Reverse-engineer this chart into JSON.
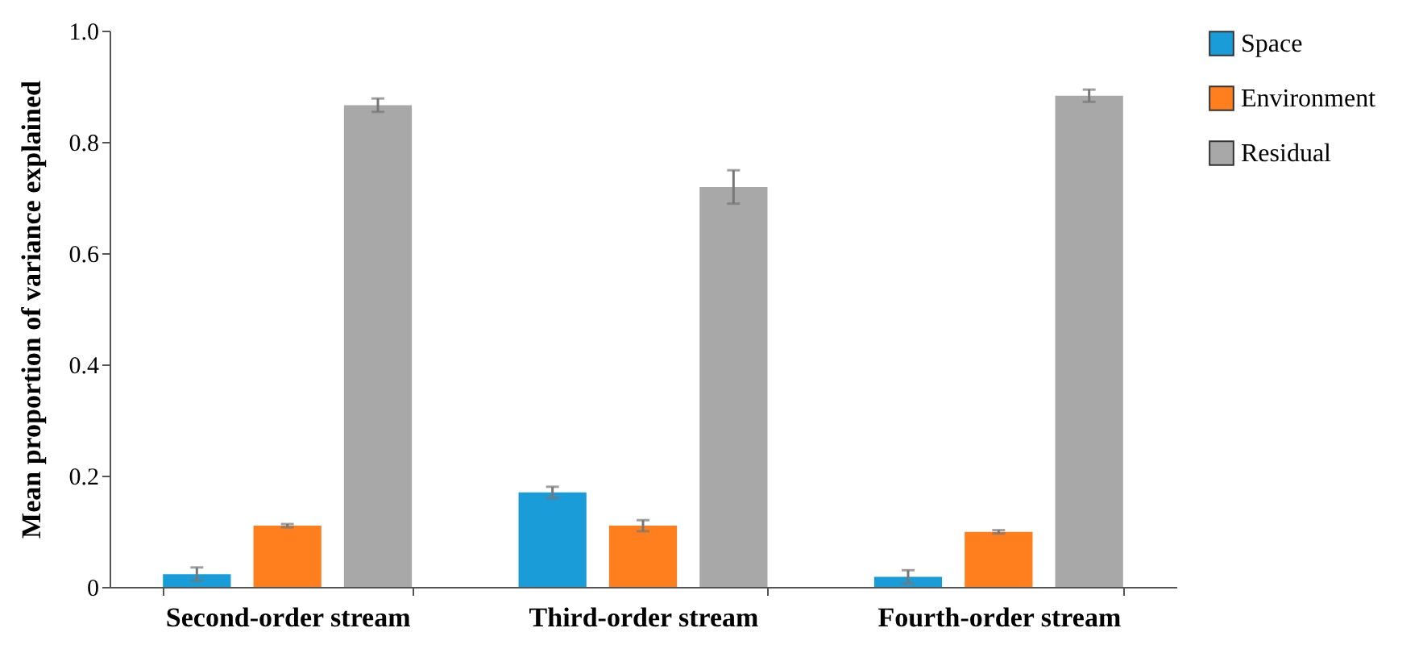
{
  "chart_data": {
    "type": "bar",
    "ylabel": "Mean proportion of variance explained",
    "categories": [
      "Second-order stream",
      "Third-order stream",
      "Fourth-order stream"
    ],
    "series": [
      {
        "name": "Space",
        "color": "#1a9cd8",
        "values": [
          0.023,
          0.17,
          0.018
        ],
        "errors": [
          0.012,
          0.01,
          0.012
        ]
      },
      {
        "name": "Environment",
        "color": "#ff7f1e",
        "values": [
          0.11,
          0.11,
          0.099
        ],
        "errors": [
          0.003,
          0.01,
          0.003
        ]
      },
      {
        "name": "Residual",
        "color": "#a8a8a8",
        "values": [
          0.866,
          0.719,
          0.883
        ],
        "errors": [
          0.012,
          0.03,
          0.011
        ]
      }
    ],
    "ylim": [
      0,
      1
    ],
    "yticks": [
      0,
      {
        "value": 0.2,
        "label": "0.2"
      },
      {
        "value": 0.4,
        "label": "0.4"
      },
      {
        "value": 0.6,
        "label": "0.6"
      },
      {
        "value": 0.8,
        "label": "0.8"
      },
      {
        "value": 1,
        "label": "1.0"
      }
    ],
    "grid": false,
    "legend": "right"
  }
}
